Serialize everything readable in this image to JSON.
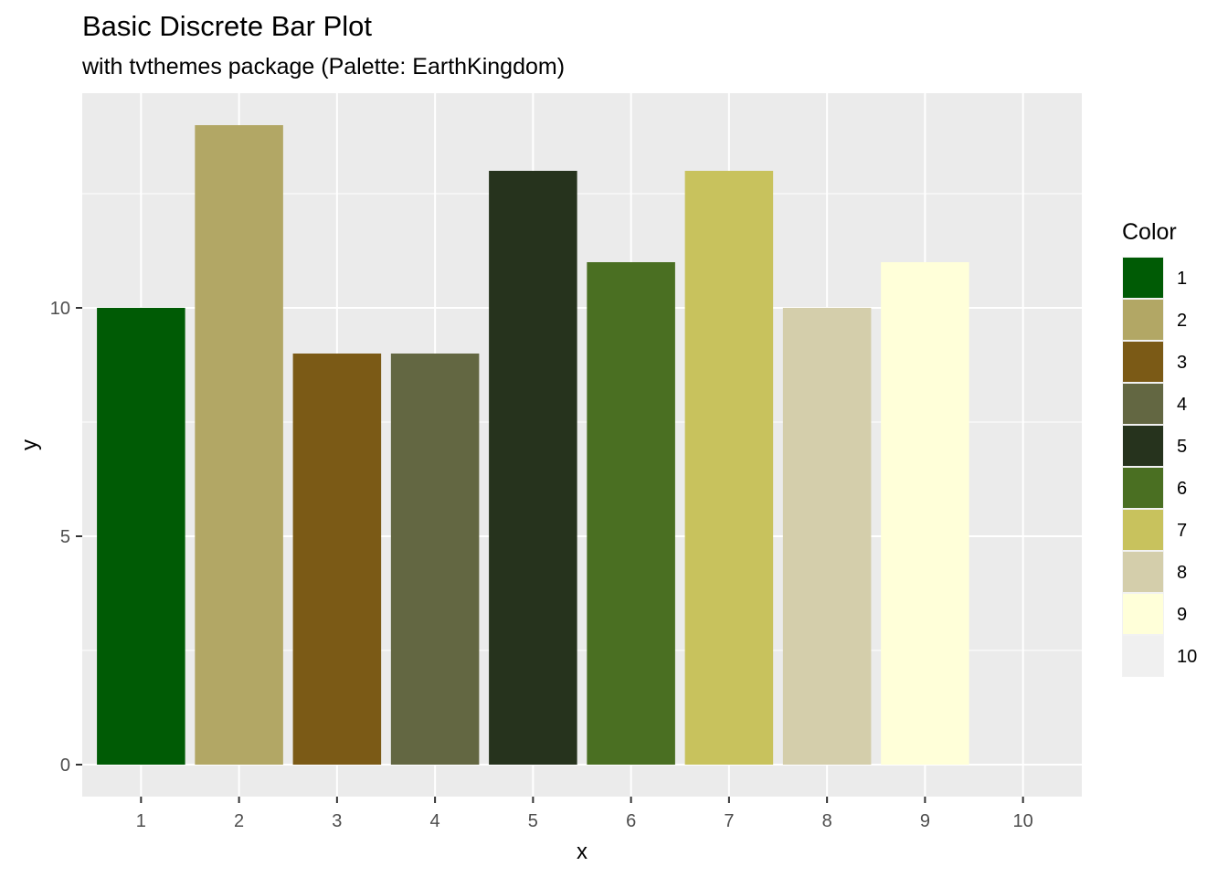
{
  "chart_data": {
    "type": "bar",
    "title": "Basic Discrete Bar Plot",
    "subtitle": "with tvthemes package (Palette: EarthKingdom)",
    "xlabel": "x",
    "ylabel": "y",
    "categories": [
      "1",
      "2",
      "3",
      "4",
      "5",
      "6",
      "7",
      "8",
      "9",
      "10"
    ],
    "values": [
      10,
      14,
      9,
      9,
      13,
      11,
      13,
      10,
      11,
      0
    ],
    "colors": [
      "#005B05",
      "#B2A765",
      "#7B5A16",
      "#636742",
      "#26331D",
      "#4A6F22",
      "#C8C25D",
      "#D4CEAB",
      "#FFFFD9",
      "#F0F0F0"
    ],
    "ylim": [
      -0.7,
      14.7
    ],
    "yticks": [
      0,
      5,
      10
    ],
    "grid": true,
    "background": "#EBEBEB",
    "legend": {
      "title": "Color",
      "position": "right",
      "entries": [
        "1",
        "2",
        "3",
        "4",
        "5",
        "6",
        "7",
        "8",
        "9",
        "10"
      ]
    }
  }
}
